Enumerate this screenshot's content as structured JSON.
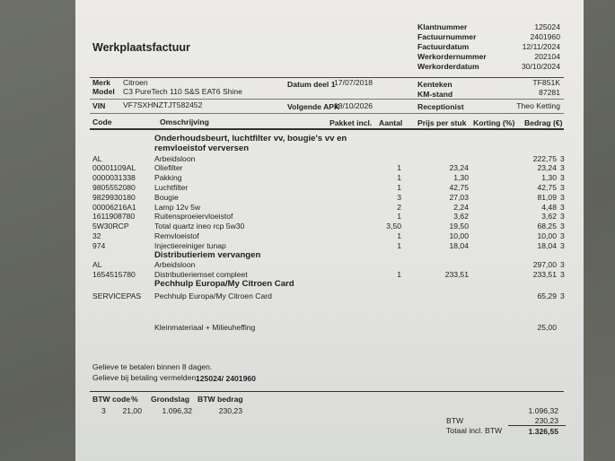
{
  "header": {
    "title": "Werkplaatsfactuur",
    "meta": [
      {
        "label": "Klantnummer",
        "value": "125024"
      },
      {
        "label": "Factuurnummer",
        "value": "2401960"
      },
      {
        "label": "Factuurdatum",
        "value": "12/11/2024"
      },
      {
        "label": "Werkordernummer",
        "value": "202104"
      },
      {
        "label": "Werkorderdatum",
        "value": "30/10/2024"
      }
    ]
  },
  "vehicle": {
    "merk_label": "Merk",
    "merk": "Citroen",
    "model_label": "Model",
    "model": "C3 PureTech 110 S&S EAT6 Shine",
    "vin_label": "VIN",
    "vin": "VF7SXHNZTJT582452",
    "datum_label": "Datum deel 1",
    "datum": "17/07/2018",
    "apk_label": "Volgende APK",
    "apk": "18/10/2026",
    "kenteken_label": "Kenteken",
    "kenteken": "TF851K",
    "km_label": "KM-stand",
    "km": "87281",
    "receptionist_label": "Receptionist",
    "receptionist": "Theo Ketting"
  },
  "columns": {
    "code": "Code",
    "omschrijving": "Omschrijving",
    "pakket": "Pakket incl.",
    "aantal": "Aantal",
    "prijs": "Prijs per stuk",
    "korting": "Korting (%)",
    "bedrag": "Bedrag (€)"
  },
  "lines": [
    {
      "type": "section",
      "text": "Onderhoudsbeurt, luchtfilter vv, bougie's vv en"
    },
    {
      "type": "section",
      "text": "remvloeistof verversen"
    },
    {
      "code": "AL",
      "desc": "Arbeidsloon",
      "qty": "",
      "price": "",
      "amount": "222,75",
      "vat": "3"
    },
    {
      "code": "00001109AL",
      "desc": "Oliefilter",
      "qty": "1",
      "price": "23,24",
      "amount": "23,24",
      "vat": "3"
    },
    {
      "code": "0000031338",
      "desc": "Pakking",
      "qty": "1",
      "price": "1,30",
      "amount": "1,30",
      "vat": "3"
    },
    {
      "code": "9805552080",
      "desc": "Luchtfilter",
      "qty": "1",
      "price": "42,75",
      "amount": "42,75",
      "vat": "3"
    },
    {
      "code": "9829930180",
      "desc": "Bougie",
      "qty": "3",
      "price": "27,03",
      "amount": "81,09",
      "vat": "3"
    },
    {
      "code": "00006216A1",
      "desc": "Lamp 12v 5w",
      "qty": "2",
      "price": "2,24",
      "amount": "4,48",
      "vat": "3"
    },
    {
      "code": "1611908780",
      "desc": "Ruitensproeiervloeistof",
      "qty": "1",
      "price": "3,62",
      "amount": "3,62",
      "vat": "3"
    },
    {
      "code": "5W30RCP",
      "desc": "Total quartz ineo rcp 5w30",
      "qty": "3,50",
      "price": "19,50",
      "amount": "68,25",
      "vat": "3"
    },
    {
      "code": "32",
      "desc": "Remvloeistof",
      "qty": "1",
      "price": "10,00",
      "amount": "10,00",
      "vat": "3"
    },
    {
      "code": "974",
      "desc": "Injectiereiniger tunap",
      "qty": "1",
      "price": "18,04",
      "amount": "18,04",
      "vat": "3"
    },
    {
      "type": "section",
      "text": "Distributieriem vervangen"
    },
    {
      "code": "AL",
      "desc": "Arbeidsloon",
      "qty": "",
      "price": "",
      "amount": "297,00",
      "vat": "3"
    },
    {
      "code": "1654515780",
      "desc": "Distributieriemset compleet",
      "qty": "1",
      "price": "233,51",
      "amount": "233,51",
      "vat": "3"
    },
    {
      "type": "section",
      "text": "Pechhulp Europa/My Citroen Card"
    },
    {
      "code": "SERVICEPAS",
      "desc": "Pechhulp Europa/My Citroen Card",
      "qty": "",
      "price": "",
      "amount": "65,29",
      "vat": "3",
      "gap": 2
    },
    {
      "code": "",
      "desc": "Kleinmateriaal + Milieuheffing",
      "qty": "",
      "price": "",
      "amount": "25,00",
      "vat": "",
      "gap": 24
    }
  ],
  "payment": {
    "line1": "Gelieve te betalen binnen 8 dagen.",
    "line2": "Gelieve bij betaling vermelden:",
    "reference": "125024/ 2401960"
  },
  "vat_table": {
    "headers": [
      "BTW code",
      "%",
      "Grondslag",
      "BTW bedrag"
    ],
    "row": {
      "code": "3",
      "pct": "21,00",
      "base": "1.096,32",
      "vat": "230,23"
    }
  },
  "totals": {
    "subtotal": "1.096,32",
    "btw_label": "BTW",
    "btw": "230,23",
    "total_label": "Totaal incl. BTW",
    "total": "1.326,55"
  }
}
